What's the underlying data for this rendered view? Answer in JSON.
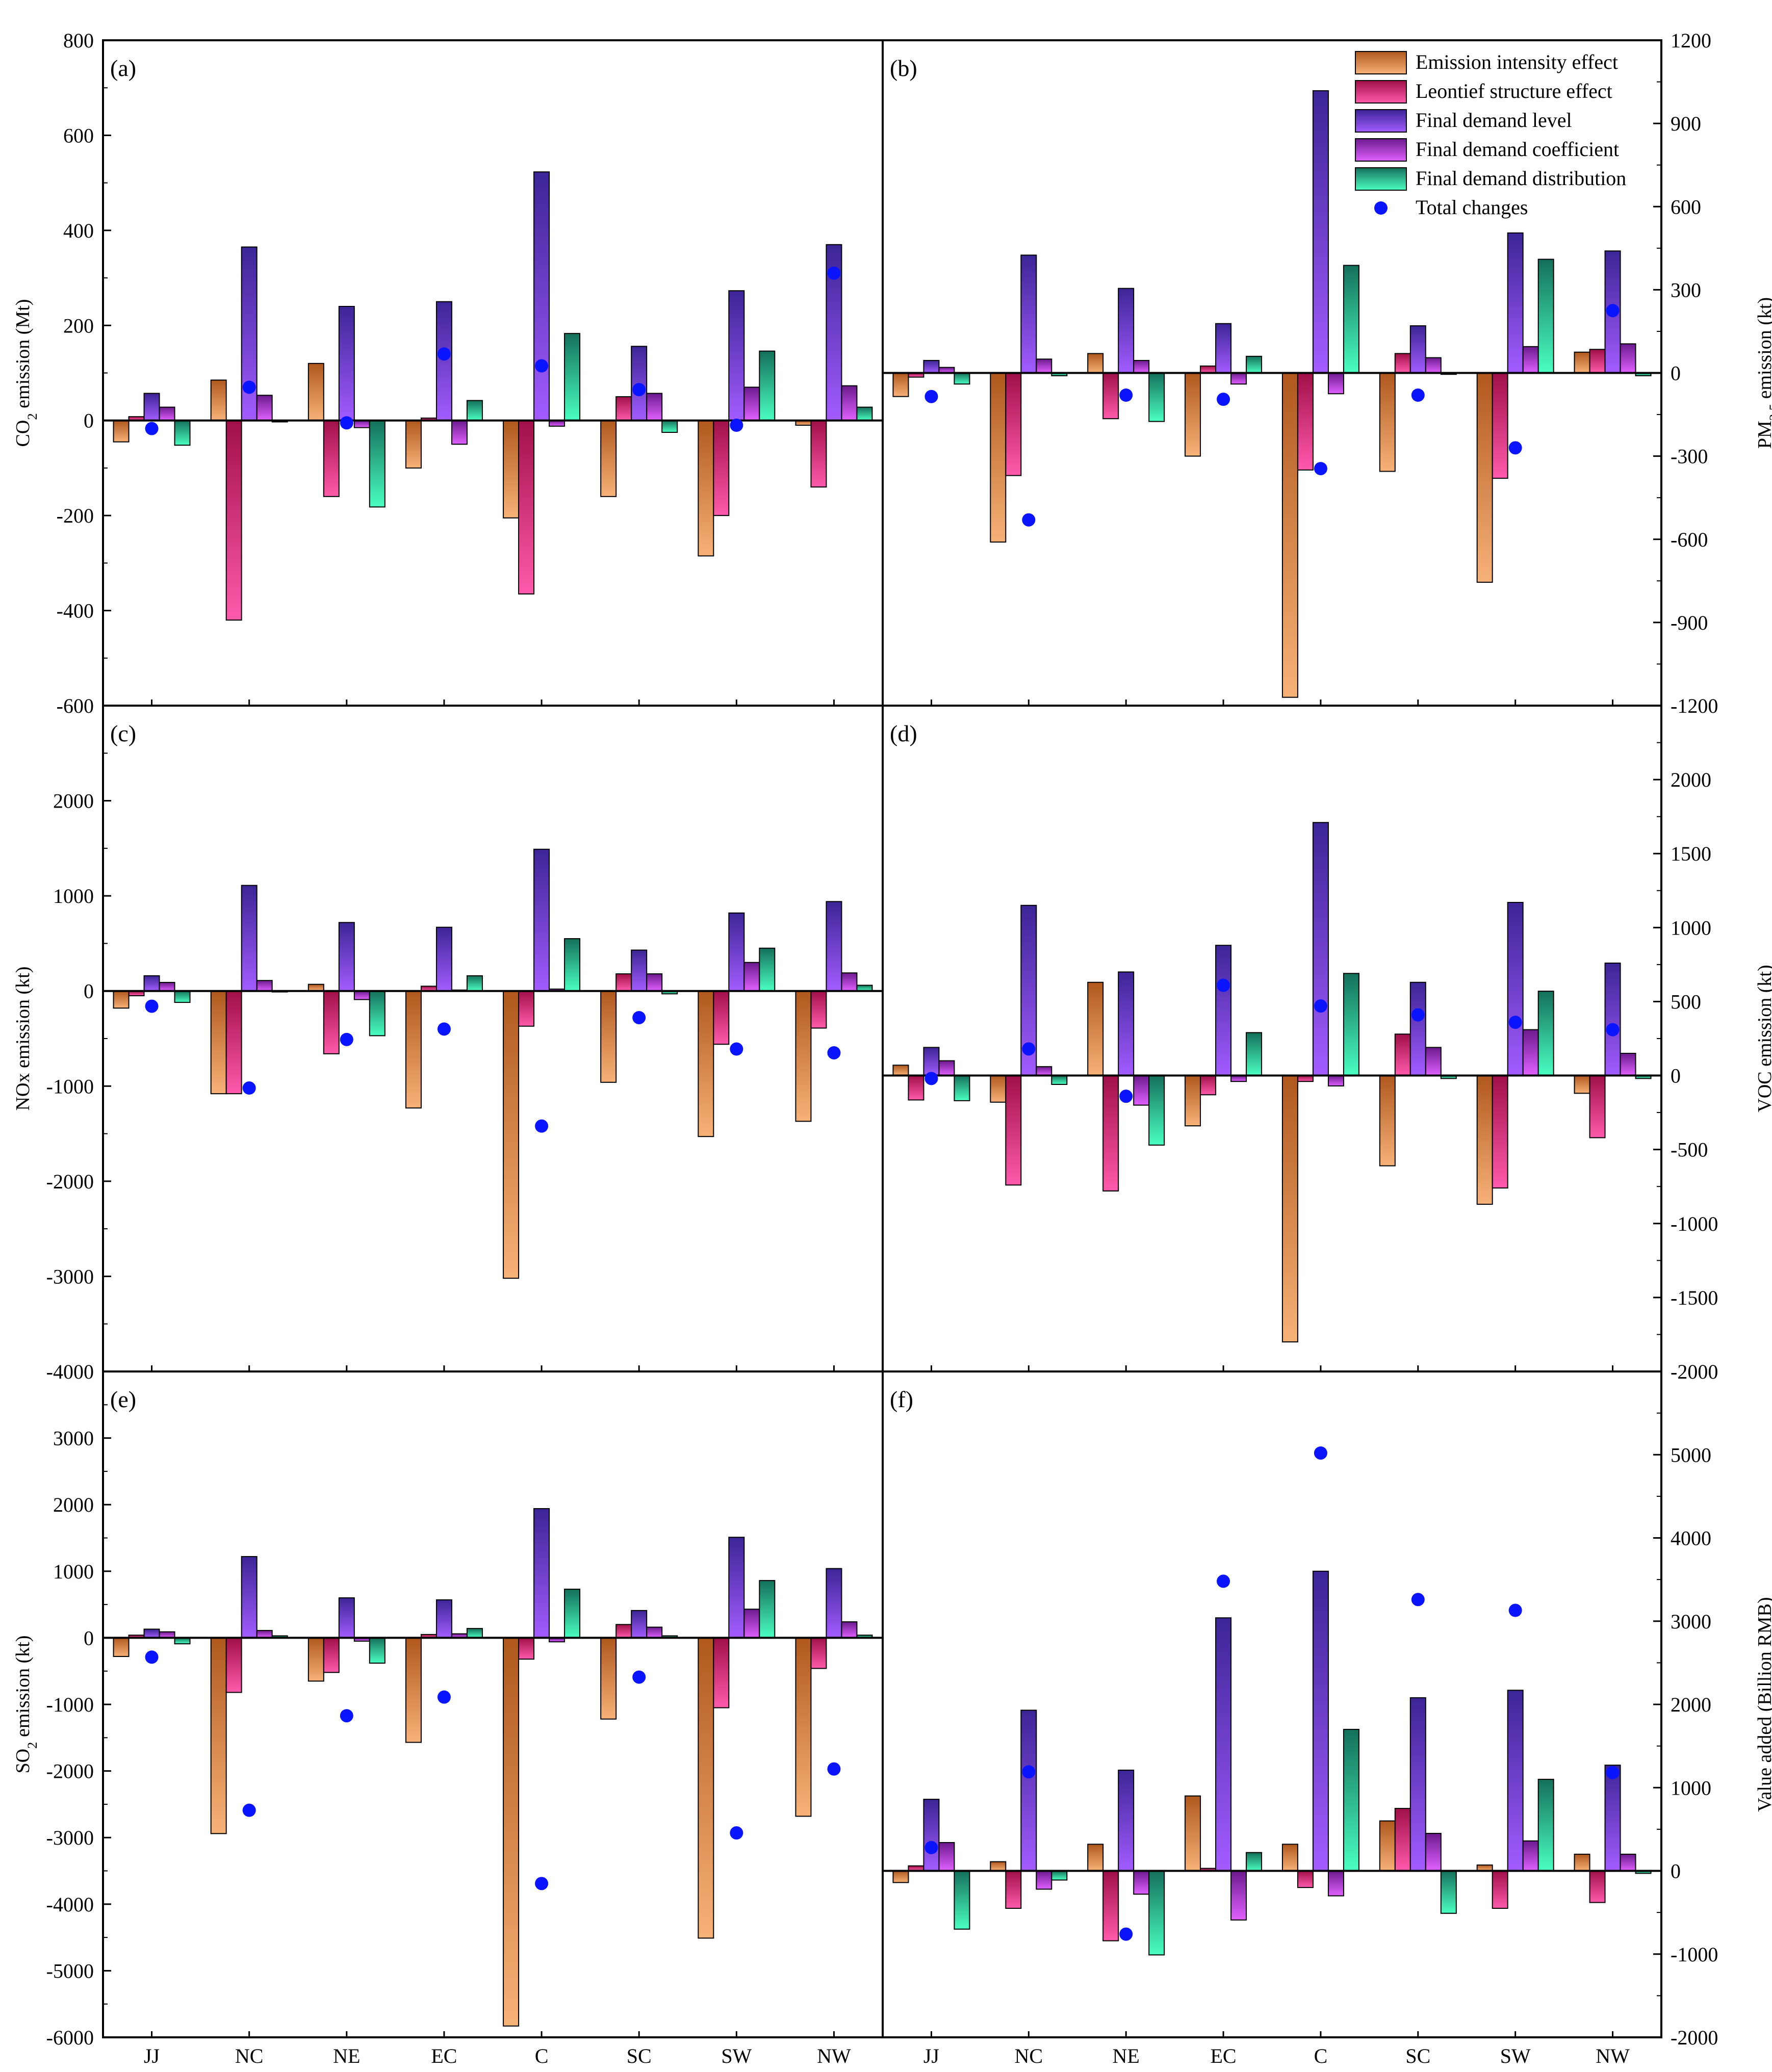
{
  "figure": {
    "x_categories": [
      "JJ",
      "NC",
      "NE",
      "EC",
      "C",
      "SC",
      "SW",
      "NW"
    ],
    "legend": [
      {
        "label": "Emission intensity effect",
        "color_dark": "#b0581e",
        "color_light": "#f7b277"
      },
      {
        "label": "Leontief structure effect",
        "color_dark": "#a01048",
        "color_light": "#ff5aac"
      },
      {
        "label": "Final demand level",
        "color_dark": "#3c2596",
        "color_light": "#a35cff"
      },
      {
        "label": "Final demand coefficient",
        "color_dark": "#6c1a8e",
        "color_light": "#e060ff"
      },
      {
        "label": "Final demand distribution",
        "color_dark": "#14705a",
        "color_light": "#4affc2"
      },
      {
        "label": "Total changes",
        "color": "#0a14ff"
      }
    ]
  },
  "chart_data": [
    {
      "panel": "(a)",
      "type": "bar",
      "ylabel": "CO_2 emission (Mt)",
      "axis_side": "left",
      "ylim": [
        -600,
        800
      ],
      "ticks": [
        -600,
        -400,
        -200,
        0,
        200,
        400,
        600,
        800
      ],
      "series": [
        {
          "name": "Emission intensity effect",
          "values": [
            -45,
            85,
            120,
            -100,
            -205,
            -160,
            -285,
            -10
          ]
        },
        {
          "name": "Leontief structure effect",
          "values": [
            8,
            -420,
            -160,
            5,
            -365,
            50,
            -200,
            -140
          ]
        },
        {
          "name": "Final demand level",
          "values": [
            57,
            365,
            240,
            250,
            523,
            156,
            273,
            370
          ]
        },
        {
          "name": "Final demand coefficient",
          "values": [
            28,
            53,
            -15,
            -50,
            -12,
            57,
            70,
            73
          ]
        },
        {
          "name": "Final demand distribution",
          "values": [
            -52,
            -3,
            -182,
            42,
            183,
            -25,
            146,
            28
          ]
        }
      ],
      "total": [
        -17,
        70,
        -5,
        140,
        115,
        65,
        -10,
        310
      ]
    },
    {
      "panel": "(b)",
      "type": "bar",
      "ylabel": "PM_2.5 emission (kt)",
      "axis_side": "right",
      "ylim": [
        -1200,
        1200
      ],
      "ticks": [
        -1200,
        -900,
        -600,
        -300,
        0,
        300,
        600,
        900,
        1200
      ],
      "series": [
        {
          "name": "Emission intensity effect",
          "values": [
            -85,
            -610,
            70,
            -300,
            -1170,
            -355,
            -755,
            75
          ]
        },
        {
          "name": "Leontief structure effect",
          "values": [
            -15,
            -370,
            -165,
            25,
            -350,
            70,
            -380,
            85
          ]
        },
        {
          "name": "Final demand level",
          "values": [
            45,
            425,
            305,
            178,
            1018,
            170,
            505,
            440
          ]
        },
        {
          "name": "Final demand coefficient",
          "values": [
            20,
            50,
            45,
            -40,
            -75,
            55,
            95,
            105
          ]
        },
        {
          "name": "Final demand distribution",
          "values": [
            -40,
            -10,
            -175,
            60,
            388,
            -5,
            410,
            -10
          ]
        }
      ],
      "total": [
        -85,
        -530,
        -80,
        -95,
        -345,
        -80,
        -270,
        225
      ]
    },
    {
      "panel": "(c)",
      "type": "bar",
      "ylabel": "NOx emission (kt)",
      "axis_side": "left",
      "ylim": [
        -4000,
        3000
      ],
      "ticks": [
        -4000,
        -3000,
        -2000,
        -1000,
        0,
        1000,
        2000
      ],
      "series": [
        {
          "name": "Emission intensity effect",
          "values": [
            -180,
            -1080,
            70,
            -1230,
            -3020,
            -960,
            -1530,
            -1370
          ]
        },
        {
          "name": "Leontief structure effect",
          "values": [
            -50,
            -1080,
            -660,
            50,
            -370,
            180,
            -560,
            -390
          ]
        },
        {
          "name": "Final demand level",
          "values": [
            160,
            1110,
            720,
            670,
            1490,
            430,
            820,
            940
          ]
        },
        {
          "name": "Final demand coefficient",
          "values": [
            90,
            110,
            -90,
            10,
            20,
            180,
            300,
            190
          ]
        },
        {
          "name": "Final demand distribution",
          "values": [
            -120,
            -10,
            -470,
            160,
            550,
            -30,
            450,
            60
          ]
        }
      ],
      "total": [
        -160,
        -1020,
        -510,
        -400,
        -1420,
        -280,
        -610,
        -650
      ]
    },
    {
      "panel": "(d)",
      "type": "bar",
      "ylabel": "VOC emission (kt)",
      "axis_side": "right",
      "ylim": [
        -2000,
        2500
      ],
      "ticks": [
        -2000,
        -1500,
        -1000,
        -500,
        0,
        500,
        1000,
        1500,
        2000
      ],
      "series": [
        {
          "name": "Emission intensity effect",
          "values": [
            70,
            -180,
            630,
            -340,
            -1800,
            -610,
            -870,
            -120
          ]
        },
        {
          "name": "Leontief structure effect",
          "values": [
            -165,
            -740,
            -780,
            -130,
            -40,
            280,
            -760,
            -420
          ]
        },
        {
          "name": "Final demand level",
          "values": [
            190,
            1150,
            700,
            880,
            1710,
            630,
            1170,
            760
          ]
        },
        {
          "name": "Final demand coefficient",
          "values": [
            100,
            60,
            -200,
            -40,
            -70,
            190,
            310,
            150
          ]
        },
        {
          "name": "Final demand distribution",
          "values": [
            -170,
            -60,
            -470,
            290,
            690,
            -20,
            570,
            -20
          ]
        }
      ],
      "total": [
        -20,
        180,
        -140,
        610,
        470,
        410,
        360,
        310
      ]
    },
    {
      "panel": "(e)",
      "type": "bar",
      "ylabel": "SO_2 emission (kt)",
      "axis_side": "left",
      "ylim": [
        -6000,
        4000
      ],
      "ticks": [
        -6000,
        -5000,
        -4000,
        -3000,
        -2000,
        -1000,
        0,
        1000,
        2000,
        3000
      ],
      "series": [
        {
          "name": "Emission intensity effect",
          "values": [
            -280,
            -2940,
            -650,
            -1570,
            -5830,
            -1220,
            -4510,
            -2680
          ]
        },
        {
          "name": "Leontief structure effect",
          "values": [
            40,
            -820,
            -520,
            50,
            -320,
            200,
            -1050,
            -460
          ]
        },
        {
          "name": "Final demand level",
          "values": [
            130,
            1220,
            600,
            570,
            1940,
            410,
            1510,
            1040
          ]
        },
        {
          "name": "Final demand coefficient",
          "values": [
            90,
            110,
            -50,
            60,
            -60,
            160,
            430,
            240
          ]
        },
        {
          "name": "Final demand distribution",
          "values": [
            -90,
            30,
            -380,
            140,
            730,
            30,
            860,
            40
          ]
        }
      ],
      "total": [
        -290,
        -2590,
        -1170,
        -890,
        -3690,
        -590,
        -2930,
        -1970
      ]
    },
    {
      "panel": "(f)",
      "type": "bar",
      "ylabel": "Value added (Billion RMB)",
      "axis_side": "right",
      "ylim": [
        -2000,
        6000
      ],
      "ticks": [
        -2000,
        -1000,
        0,
        1000,
        2000,
        3000,
        4000,
        5000
      ],
      "series": [
        {
          "name": "Emission intensity effect",
          "values": [
            -140,
            110,
            320,
            900,
            320,
            600,
            70,
            200
          ]
        },
        {
          "name": "Leontief structure effect",
          "values": [
            60,
            -450,
            -840,
            30,
            -200,
            750,
            -450,
            -380
          ]
        },
        {
          "name": "Final demand level",
          "values": [
            860,
            1930,
            1210,
            3040,
            3600,
            2080,
            2170,
            1270
          ]
        },
        {
          "name": "Final demand coefficient",
          "values": [
            340,
            -220,
            -280,
            -590,
            -300,
            450,
            360,
            200
          ]
        },
        {
          "name": "Final demand distribution",
          "values": [
            -700,
            -110,
            -1010,
            220,
            1700,
            -510,
            1100,
            -30
          ]
        }
      ],
      "total": [
        280,
        1190,
        -760,
        3480,
        5020,
        3260,
        3130,
        1180
      ]
    }
  ]
}
